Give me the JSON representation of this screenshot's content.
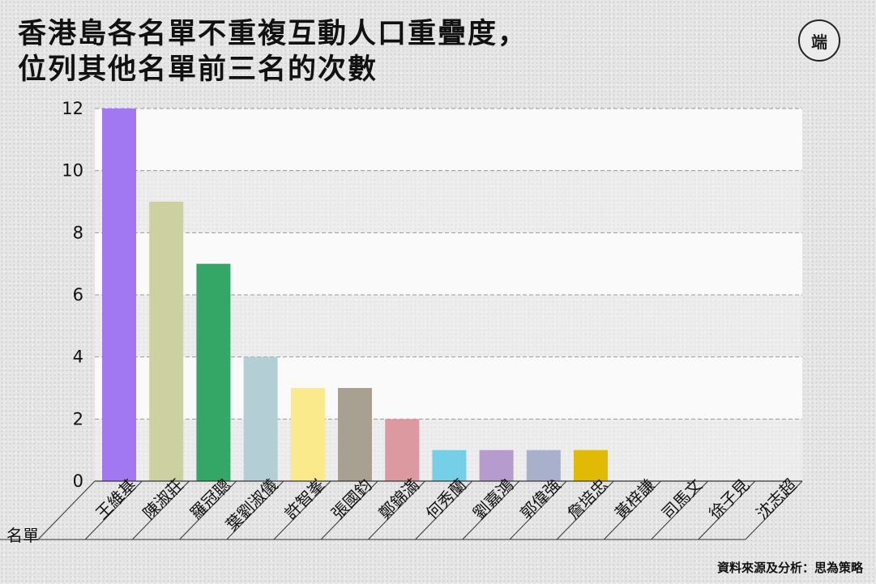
{
  "title": {
    "line1": "香港島各名單不重複互動人口重疊度，",
    "line2": "位列其他名單前三名的次數"
  },
  "logo": {
    "text": "端"
  },
  "source": "資料來源及分析：思為策略",
  "colors": {
    "grid_band": "#fafafa",
    "grid_line": "#999999",
    "axis": "#333333"
  },
  "chart_data": {
    "type": "bar",
    "title": "香港島各名單不重複互動人口重疊度，位列其他名單前三名的次數",
    "xlabel": "名單",
    "ylabel": "",
    "ylim": [
      0,
      12
    ],
    "yticks": [
      0,
      2,
      4,
      6,
      8,
      10,
      12
    ],
    "grid": true,
    "categories": [
      "王維基",
      "陳淑莊",
      "羅冠聰",
      "葉劉淑儀",
      "許智峯",
      "張國鈞",
      "鄭錦滿",
      "何秀蘭",
      "劉嘉鴻",
      "郭偉強",
      "詹培忠",
      "黃梓謙",
      "司馬文",
      "徐子見",
      "沈志超"
    ],
    "values": [
      12,
      9,
      7,
      4,
      3,
      3,
      2,
      1,
      1,
      1,
      1,
      0,
      0,
      0,
      0
    ],
    "bar_colors": [
      "#a278f2",
      "#cdd1a1",
      "#34a665",
      "#b4ced6",
      "#faea8c",
      "#a8a091",
      "#dc9aa0",
      "#75cfe6",
      "#b59bce",
      "#a9b0cc",
      "#e1ba06",
      "#cccccc",
      "#cccccc",
      "#cccccc",
      "#cccccc"
    ]
  }
}
